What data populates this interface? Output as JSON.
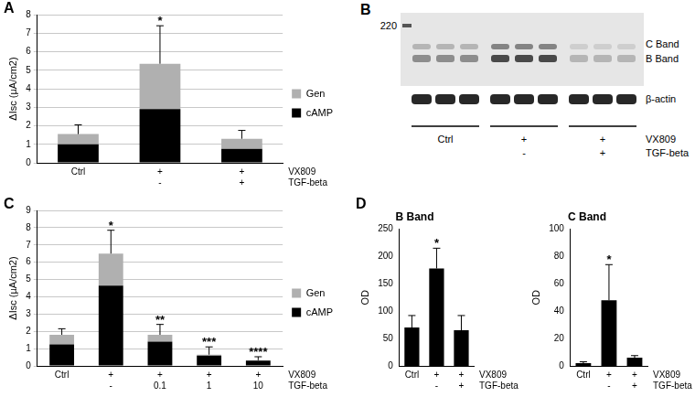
{
  "chart_data": [
    {
      "panel_label": "A",
      "type": "bar",
      "stacked": true,
      "categories": [
        [
          "Ctrl"
        ],
        [
          "+",
          "-"
        ],
        [
          "+",
          "+"
        ]
      ],
      "row_labels": [
        "VX809",
        "TGF-beta"
      ],
      "y_label": "ΔIsc (µA/cm2)",
      "ylim": [
        0,
        8
      ],
      "yticks": [
        0,
        1,
        2,
        3,
        4,
        5,
        6,
        7,
        8
      ],
      "grid": true,
      "legend": "right",
      "series": [
        {
          "name": "cAMP",
          "color": "#000000",
          "values": [
            1.0,
            2.9,
            0.75
          ]
        },
        {
          "name": "Gen",
          "color": "#b0b0b0",
          "values": [
            0.55,
            2.45,
            0.55
          ]
        }
      ],
      "errors": [
        0.5,
        2.05,
        0.45
      ],
      "significance": [
        null,
        "*",
        null
      ]
    },
    {
      "panel_label": "C",
      "type": "bar",
      "stacked": true,
      "categories": [
        [
          "Ctrl"
        ],
        [
          "+",
          "-"
        ],
        [
          "+",
          "0.1"
        ],
        [
          "+",
          "1"
        ],
        [
          "+",
          "10"
        ]
      ],
      "row_labels": [
        "VX809",
        "TGF-beta"
      ],
      "y_label": "ΔIsc (µA/cm2)",
      "ylim": [
        0,
        9
      ],
      "yticks": [
        0,
        1,
        2,
        3,
        4,
        5,
        6,
        7,
        8,
        9
      ],
      "grid": true,
      "legend": "right",
      "series": [
        {
          "name": "cAMP",
          "color": "#000000",
          "values": [
            1.25,
            4.65,
            1.4,
            0.6,
            0.3
          ]
        },
        {
          "name": "Gen",
          "color": "#b0b0b0",
          "values": [
            0.55,
            1.85,
            0.4,
            0.05,
            0.03
          ]
        }
      ],
      "errors": [
        0.35,
        1.35,
        0.6,
        0.45,
        0.2
      ],
      "significance": [
        null,
        "*",
        "**",
        "***",
        "****"
      ]
    },
    {
      "panel_label": "D",
      "type": "bar",
      "title": "B Band",
      "categories": [
        [
          "Ctrl"
        ],
        [
          "+",
          "-"
        ],
        [
          "+",
          "+"
        ]
      ],
      "row_labels": [
        "VX809",
        "TGF-beta"
      ],
      "y_label": "OD",
      "ylim": [
        0,
        250
      ],
      "yticks": [
        0,
        50,
        100,
        150,
        200,
        250
      ],
      "grid": false,
      "color": "#000000",
      "values": [
        70,
        178,
        65
      ],
      "errors": [
        22,
        37,
        27
      ],
      "significance": [
        null,
        "*",
        null
      ]
    },
    {
      "type": "bar",
      "title": "C Band",
      "categories": [
        [
          "Ctrl"
        ],
        [
          "+",
          "-"
        ],
        [
          "+",
          "+"
        ]
      ],
      "row_labels": [
        "VX809",
        "TGF-beta"
      ],
      "y_label": "OD",
      "ylim": [
        0,
        100
      ],
      "yticks": [
        0,
        20,
        40,
        60,
        80,
        100
      ],
      "grid": false,
      "color": "#000000",
      "values": [
        2,
        48,
        6
      ],
      "errors": [
        1,
        26,
        1.5
      ],
      "significance": [
        null,
        "*",
        null
      ]
    }
  ],
  "blot": {
    "panel_label": "B",
    "size_marker": 220,
    "band_labels": [
      "C Band",
      "B Band"
    ],
    "loading_control": "β-actin",
    "categories": [
      [
        "Ctrl"
      ],
      [
        "+",
        "-"
      ],
      [
        "+",
        "+"
      ]
    ],
    "row_labels": [
      "VX809",
      "TGF-beta"
    ]
  }
}
